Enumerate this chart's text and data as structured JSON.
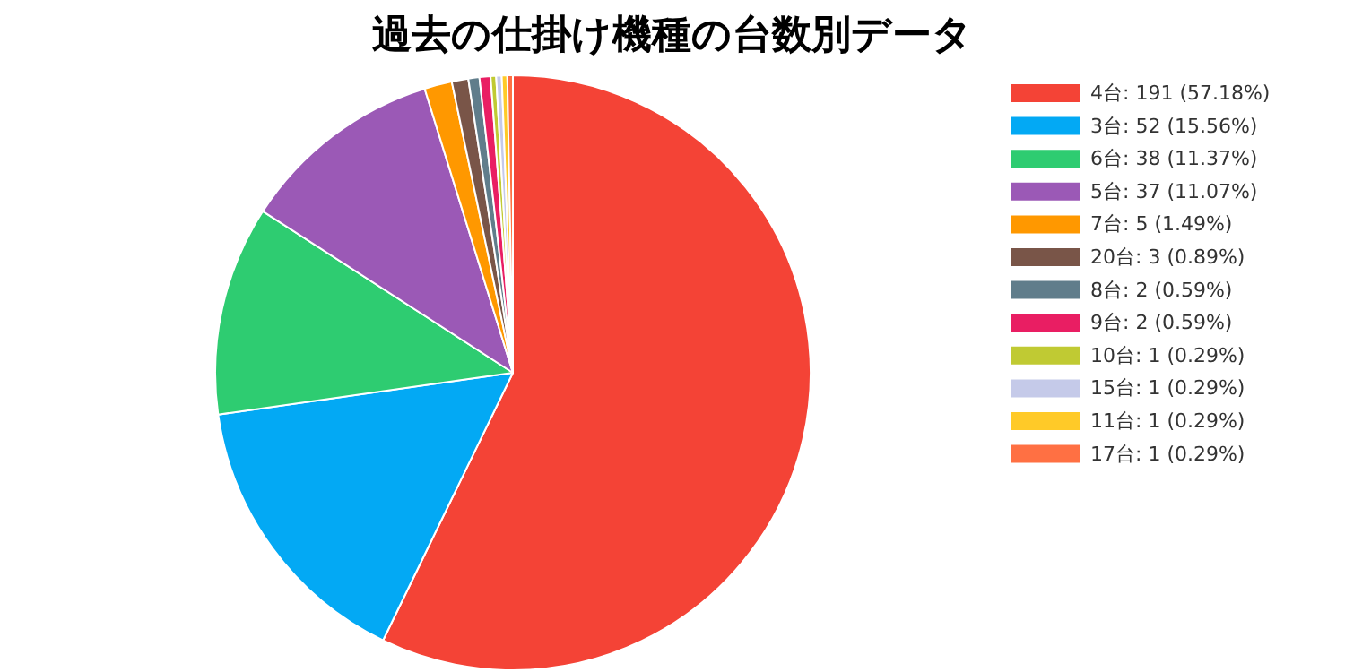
{
  "chart_data": {
    "type": "pie",
    "title": "過去の仕掛け機種の台数別データ",
    "categories": [
      "4台",
      "3台",
      "6台",
      "5台",
      "7台",
      "20台",
      "8台",
      "9台",
      "10台",
      "15台",
      "11台",
      "17台"
    ],
    "values": [
      191,
      52,
      38,
      37,
      5,
      3,
      2,
      2,
      1,
      1,
      1,
      1
    ],
    "value_labels": [
      "191 (57.18%)",
      "52 (15.56%)",
      "38 (11.37%)",
      "37 (11.07%)",
      "5 (1.49%)",
      "3 (0.89%)",
      "2 (0.59%)",
      "2 (0.59%)",
      "1 (0.29%)",
      "1 (0.29%)",
      "1 (0.29%)",
      "1 (0.29%)"
    ],
    "colors": [
      "#f44336",
      "#03a9f4",
      "#2ecc71",
      "#9b59b6",
      "#ff9800",
      "#795548",
      "#607d8b",
      "#e91e63",
      "#c0ca33",
      "#c5cae9",
      "#ffca28",
      "#ff7043"
    ],
    "legend": "right"
  }
}
